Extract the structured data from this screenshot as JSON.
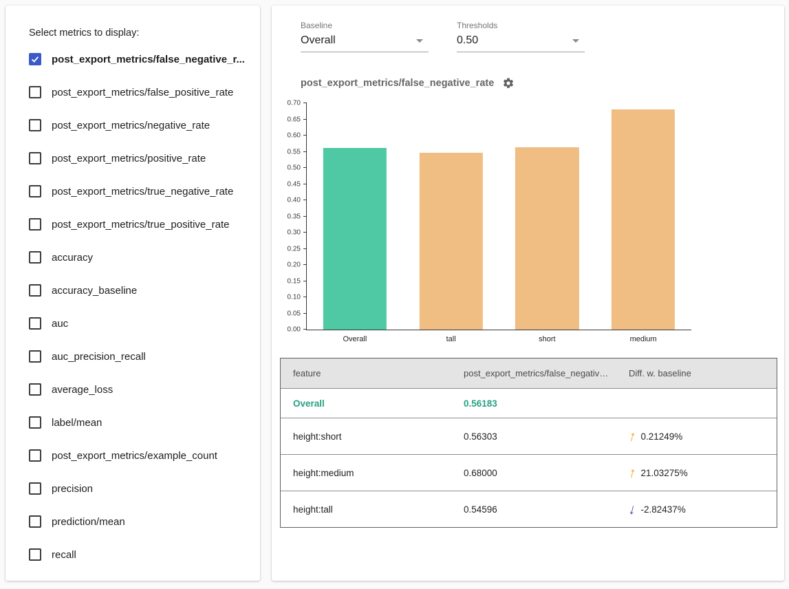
{
  "accent": {
    "checkbox_checked": "#3a5bc7",
    "baseline_bar": "#4ec9a4",
    "slice_bar": "#f0bd83",
    "highlight_text": "#26a183",
    "up_arrow": "#f5a623",
    "down_arrow": "#3f51b5"
  },
  "metrics_panel": {
    "title": "Select metrics to display:",
    "items": [
      {
        "label": "post_export_metrics/false_negative_r...",
        "checked": true
      },
      {
        "label": "post_export_metrics/false_positive_rate",
        "checked": false
      },
      {
        "label": "post_export_metrics/negative_rate",
        "checked": false
      },
      {
        "label": "post_export_metrics/positive_rate",
        "checked": false
      },
      {
        "label": "post_export_metrics/true_negative_rate",
        "checked": false
      },
      {
        "label": "post_export_metrics/true_positive_rate",
        "checked": false
      },
      {
        "label": "accuracy",
        "checked": false
      },
      {
        "label": "accuracy_baseline",
        "checked": false
      },
      {
        "label": "auc",
        "checked": false
      },
      {
        "label": "auc_precision_recall",
        "checked": false
      },
      {
        "label": "average_loss",
        "checked": false
      },
      {
        "label": "label/mean",
        "checked": false
      },
      {
        "label": "post_export_metrics/example_count",
        "checked": false
      },
      {
        "label": "precision",
        "checked": false
      },
      {
        "label": "prediction/mean",
        "checked": false
      },
      {
        "label": "recall",
        "checked": false
      }
    ]
  },
  "controls": {
    "baseline": {
      "label": "Baseline",
      "value": "Overall"
    },
    "thresholds": {
      "label": "Thresholds",
      "value": "0.50"
    }
  },
  "chart": {
    "title": "post_export_metrics/false_negative_rate"
  },
  "chart_data": {
    "type": "bar",
    "title": "post_export_metrics/false_negative_rate",
    "categories": [
      "Overall",
      "tall",
      "short",
      "medium"
    ],
    "values": [
      0.56183,
      0.54596,
      0.56303,
      0.68
    ],
    "colors": [
      "#4ec9a4",
      "#f0bd83",
      "#f0bd83",
      "#f0bd83"
    ],
    "xlabel": "",
    "ylabel": "",
    "ylim": [
      0,
      0.7
    ],
    "ytick_step": 0.05,
    "grid": false,
    "legend": "none"
  },
  "table": {
    "headers": [
      "feature",
      "post_export_metrics/false_negative_rat...",
      "Diff. w. baseline"
    ],
    "rows": [
      {
        "feature": "Overall",
        "value": "0.56183",
        "diff": "",
        "direction": "none",
        "highlight": true
      },
      {
        "feature": "height:short",
        "value": "0.56303",
        "diff": "0.21249%",
        "direction": "up",
        "highlight": false
      },
      {
        "feature": "height:medium",
        "value": "0.68000",
        "diff": "21.03275%",
        "direction": "up",
        "highlight": false
      },
      {
        "feature": "height:tall",
        "value": "0.54596",
        "diff": "-2.82437%",
        "direction": "down",
        "highlight": false
      }
    ]
  }
}
